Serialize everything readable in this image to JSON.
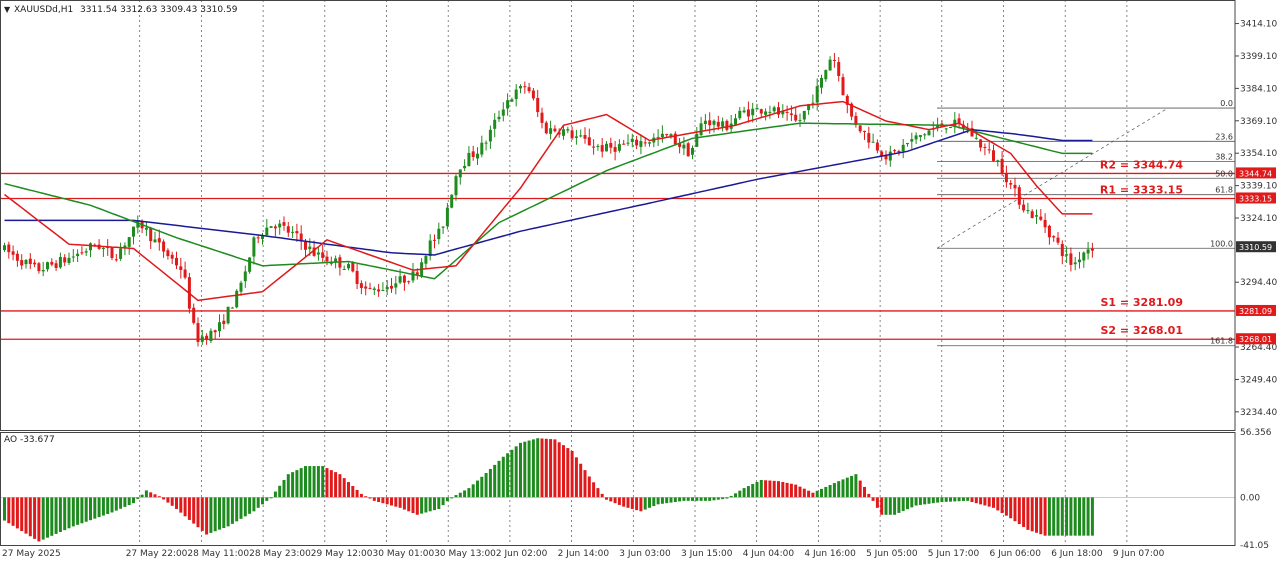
{
  "header": {
    "symbol": "XAUUSDd,H1",
    "ohlc": "3311.54 3312.63 3309.43 3310.59",
    "ao_label": "AO -33.677"
  },
  "colors": {
    "up": "#1e8b1e",
    "down": "#e0191b",
    "ma_fast": "#e0191b",
    "ma_mid": "#1e8b1e",
    "ma_slow": "#1a1a96",
    "level": "#e0191b",
    "fib": "#555555",
    "grid": "#555555",
    "price_tag": "#333333"
  },
  "chart_data": {
    "type": "candlestick",
    "price_range": [
      3226,
      3425
    ],
    "y_ticks": [
      "3414.10",
      "3399.10",
      "3384.10",
      "3369.10",
      "3354.10",
      "3339.10",
      "3324.10",
      "3294.40",
      "3264.40",
      "3249.40",
      "3234.40"
    ],
    "x_ticks": [
      "27 May 2025",
      "27 May 22:00",
      "28 May 11:00",
      "28 May 23:00",
      "29 May 12:00",
      "30 May 01:00",
      "30 May 13:00",
      "2 Jun 02:00",
      "2 Jun 14:00",
      "3 Jun 03:00",
      "3 Jun 15:00",
      "4 Jun 04:00",
      "4 Jun 16:00",
      "5 Jun 05:00",
      "5 Jun 17:00",
      "6 Jun 06:00",
      "6 Jun 18:00",
      "9 Jun 07:00"
    ],
    "current_price": "3310.59",
    "levels": [
      {
        "label": "R2 = 3344.74",
        "value": 3344.74,
        "tag": "3344.74"
      },
      {
        "label": "R1 = 3333.15",
        "value": 3333.15,
        "tag": "3333.15"
      },
      {
        "label": "S1 = 3281.09",
        "value": 3281.09,
        "tag": "3281.09"
      },
      {
        "label": "S2 = 3268.01",
        "value": 3268.01,
        "tag": "3268.01"
      }
    ],
    "fibonacci": [
      {
        "label": "0.0",
        "value": 3375.0
      },
      {
        "label": "23.6",
        "value": 3359.6
      },
      {
        "label": "38.2",
        "value": 3350.2
      },
      {
        "label": "50.0",
        "value": 3342.5
      },
      {
        "label": "61.8",
        "value": 3334.9
      },
      {
        "label": "100.0",
        "value": 3310.1
      },
      {
        "label": "161.8",
        "value": 3265.0
      }
    ],
    "price_anchors": [
      [
        0,
        3310
      ],
      [
        8,
        3300
      ],
      [
        15,
        3305
      ],
      [
        22,
        3312
      ],
      [
        26,
        3306
      ],
      [
        32,
        3322
      ],
      [
        36,
        3312
      ],
      [
        42,
        3300
      ],
      [
        45,
        3268
      ],
      [
        50,
        3272
      ],
      [
        55,
        3290
      ],
      [
        59,
        3316
      ],
      [
        63,
        3322
      ],
      [
        68,
        3316
      ],
      [
        73,
        3307
      ],
      [
        80,
        3302
      ],
      [
        85,
        3290
      ],
      [
        90,
        3293
      ],
      [
        96,
        3298
      ],
      [
        99,
        3311
      ],
      [
        102,
        3318
      ],
      [
        106,
        3348
      ],
      [
        112,
        3358
      ],
      [
        117,
        3378
      ],
      [
        122,
        3386
      ],
      [
        126,
        3365
      ],
      [
        130,
        3365
      ],
      [
        135,
        3360
      ],
      [
        140,
        3356
      ],
      [
        145,
        3358
      ],
      [
        150,
        3360
      ],
      [
        155,
        3362
      ],
      [
        160,
        3354
      ],
      [
        163,
        3370
      ],
      [
        168,
        3366
      ],
      [
        172,
        3373
      ],
      [
        178,
        3375
      ],
      [
        185,
        3368
      ],
      [
        190,
        3385
      ],
      [
        193,
        3401
      ],
      [
        197,
        3372
      ],
      [
        201,
        3362
      ],
      [
        206,
        3352
      ],
      [
        210,
        3358
      ],
      [
        215,
        3364
      ],
      [
        220,
        3368
      ],
      [
        224,
        3366
      ],
      [
        228,
        3357
      ],
      [
        232,
        3349
      ],
      [
        235,
        3337
      ],
      [
        238,
        3328
      ],
      [
        242,
        3322
      ],
      [
        245,
        3313
      ],
      [
        247,
        3307
      ],
      [
        249,
        3302
      ],
      [
        251,
        3308
      ],
      [
        253,
        3311
      ]
    ],
    "ma_slow": [
      [
        0,
        3323
      ],
      [
        30,
        3323
      ],
      [
        60,
        3316
      ],
      [
        90,
        3308
      ],
      [
        100,
        3307
      ],
      [
        120,
        3318
      ],
      [
        150,
        3331
      ],
      [
        175,
        3342
      ],
      [
        210,
        3355
      ],
      [
        225,
        3365
      ],
      [
        235,
        3363
      ],
      [
        246,
        3360
      ]
    ],
    "ma_mid": [
      [
        0,
        3340
      ],
      [
        20,
        3330
      ],
      [
        40,
        3315
      ],
      [
        60,
        3302
      ],
      [
        80,
        3304
      ],
      [
        100,
        3296
      ],
      [
        115,
        3322
      ],
      [
        140,
        3346
      ],
      [
        160,
        3361
      ],
      [
        185,
        3368
      ],
      [
        220,
        3367
      ],
      [
        230,
        3362
      ],
      [
        246,
        3354
      ]
    ],
    "ma_fast": [
      [
        0,
        3335
      ],
      [
        15,
        3312
      ],
      [
        30,
        3310
      ],
      [
        45,
        3286
      ],
      [
        60,
        3290
      ],
      [
        75,
        3314
      ],
      [
        95,
        3300
      ],
      [
        105,
        3302
      ],
      [
        120,
        3338
      ],
      [
        130,
        3367
      ],
      [
        140,
        3372
      ],
      [
        150,
        3360
      ],
      [
        170,
        3367
      ],
      [
        185,
        3376
      ],
      [
        195,
        3378
      ],
      [
        205,
        3369
      ],
      [
        215,
        3365
      ],
      [
        222,
        3368
      ],
      [
        228,
        3361
      ],
      [
        234,
        3354
      ],
      [
        240,
        3339
      ],
      [
        246,
        3326
      ]
    ],
    "ao_range": [
      -41.05,
      56.356
    ],
    "ao_ticks": [
      "56.356",
      "0.00",
      "-41.05"
    ],
    "ao_anchors": [
      [
        0,
        -20
      ],
      [
        8,
        -38
      ],
      [
        16,
        -25
      ],
      [
        25,
        -13
      ],
      [
        30,
        -5
      ],
      [
        33,
        6
      ],
      [
        36,
        1
      ],
      [
        40,
        -10
      ],
      [
        47,
        -32
      ],
      [
        52,
        -25
      ],
      [
        58,
        -12
      ],
      [
        62,
        0
      ],
      [
        66,
        20
      ],
      [
        70,
        27
      ],
      [
        74,
        27
      ],
      [
        78,
        20
      ],
      [
        83,
        3
      ],
      [
        86,
        -3
      ],
      [
        92,
        -9
      ],
      [
        96,
        -15
      ],
      [
        101,
        -10
      ],
      [
        104,
        0
      ],
      [
        108,
        8
      ],
      [
        112,
        21
      ],
      [
        116,
        35
      ],
      [
        120,
        47
      ],
      [
        124,
        51
      ],
      [
        128,
        50
      ],
      [
        132,
        40
      ],
      [
        136,
        18
      ],
      [
        140,
        -2
      ],
      [
        144,
        -8
      ],
      [
        148,
        -12
      ],
      [
        152,
        -6
      ],
      [
        158,
        -3
      ],
      [
        164,
        -3
      ],
      [
        168,
        -1
      ],
      [
        172,
        8
      ],
      [
        176,
        15
      ],
      [
        180,
        14
      ],
      [
        184,
        11
      ],
      [
        188,
        4
      ],
      [
        194,
        14
      ],
      [
        198,
        20
      ],
      [
        200,
        9
      ],
      [
        204,
        -15
      ],
      [
        207,
        -15
      ],
      [
        212,
        -7
      ],
      [
        218,
        -4
      ],
      [
        224,
        -3
      ],
      [
        230,
        -9
      ],
      [
        234,
        -18
      ],
      [
        238,
        -28
      ],
      [
        242,
        -33
      ],
      [
        246,
        -33
      ]
    ]
  }
}
